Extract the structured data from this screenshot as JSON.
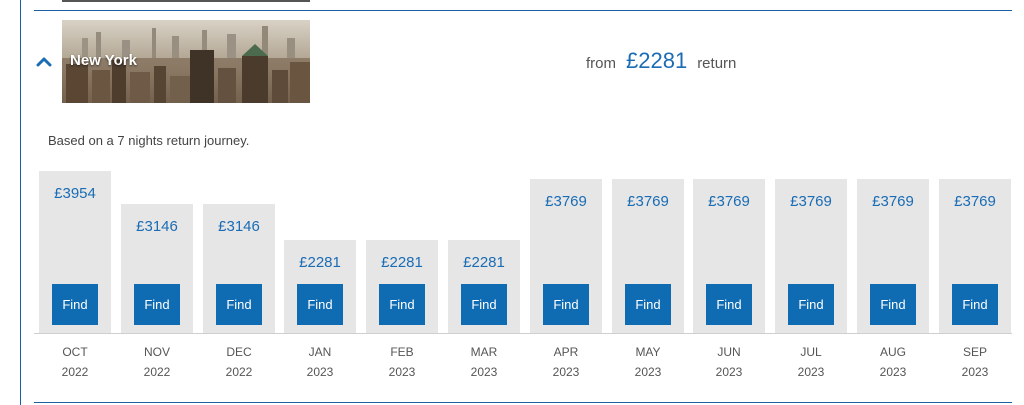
{
  "destination": {
    "city": "New York",
    "from_word": "from",
    "from_price": "£2281",
    "return_word": "return"
  },
  "note": "Based on a 7 nights return journey.",
  "months": [
    {
      "month": "OCT",
      "year": "2022",
      "price": "£3954",
      "find_label": "Find"
    },
    {
      "month": "NOV",
      "year": "2022",
      "price": "£3146",
      "find_label": "Find"
    },
    {
      "month": "DEC",
      "year": "2022",
      "price": "£3146",
      "find_label": "Find"
    },
    {
      "month": "JAN",
      "year": "2023",
      "price": "£2281",
      "find_label": "Find"
    },
    {
      "month": "FEB",
      "year": "2023",
      "price": "£2281",
      "find_label": "Find"
    },
    {
      "month": "MAR",
      "year": "2023",
      "price": "£2281",
      "find_label": "Find"
    },
    {
      "month": "APR",
      "year": "2023",
      "price": "£3769",
      "find_label": "Find"
    },
    {
      "month": "MAY",
      "year": "2023",
      "price": "£3769",
      "find_label": "Find"
    },
    {
      "month": "JUN",
      "year": "2023",
      "price": "£3769",
      "find_label": "Find"
    },
    {
      "month": "JUL",
      "year": "2023",
      "price": "£3769",
      "find_label": "Find"
    },
    {
      "month": "AUG",
      "year": "2023",
      "price": "£3769",
      "find_label": "Find"
    },
    {
      "month": "SEP",
      "year": "2023",
      "price": "£3769",
      "find_label": "Find"
    }
  ],
  "colors": {
    "accent": "#1a6cb5",
    "button": "#0f6cb3",
    "bar": "#e6e6e6",
    "rule": "#1a5fa3"
  },
  "icons": {
    "collapse": "chevron-up-icon"
  }
}
